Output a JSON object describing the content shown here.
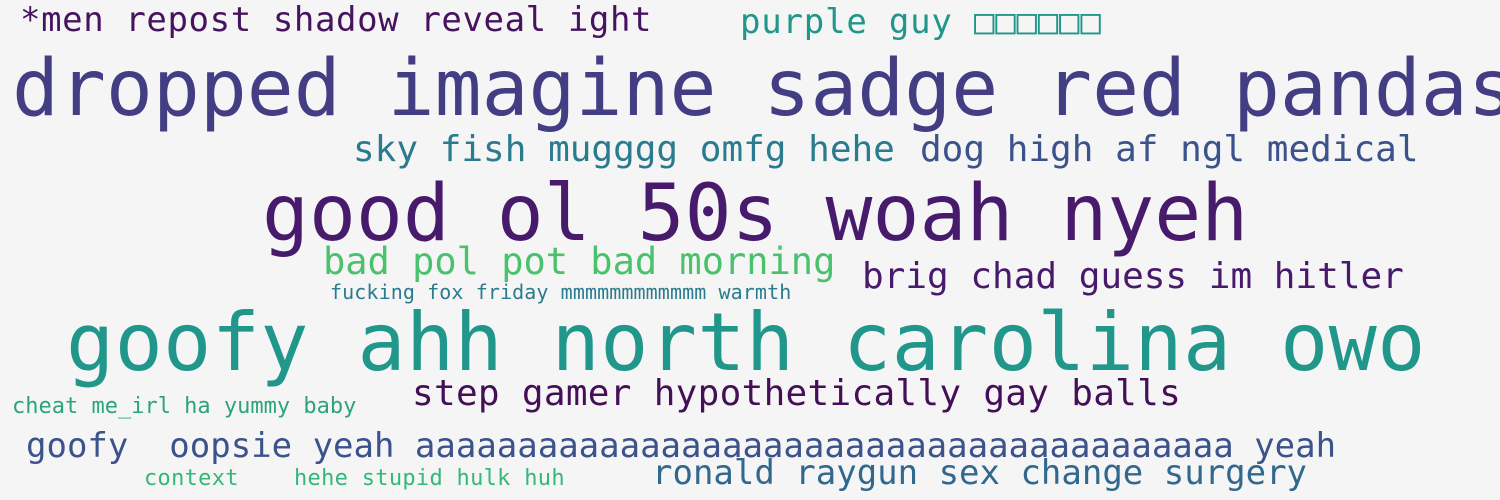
{
  "word_cloud": {
    "phrases": [
      {
        "text": "*men repost shadow reveal ight",
        "color": "#46135e"
      },
      {
        "text": "purple guy □□□□□□",
        "color": "#21968a"
      },
      {
        "text": "dropped imagine sadge red pandas",
        "color": "#433d84"
      },
      {
        "text": "sky fish mugggg omfg hehe",
        "color": "#2a7b8e"
      },
      {
        "text": "dog high af ngl medical",
        "color": "#3b528b"
      },
      {
        "text": "good ol 50s woah nyeh",
        "color": "#481a6c"
      },
      {
        "text": "bad pol pot bad morning",
        "color": "#4ac16d"
      },
      {
        "text": "brig chad guess im hitler",
        "color": "#481a6c"
      },
      {
        "text": "fucking fox friday mmmmmmmmmmmm warmth",
        "color": "#2a7b8e"
      },
      {
        "text": "goofy ahh north carolina owo",
        "color": "#21968a"
      },
      {
        "text": "cheat me_irl ha yummy baby",
        "color": "#2ba47e"
      },
      {
        "text": "step gamer hypothetically gay balls",
        "color": "#440f57"
      },
      {
        "text": "goofy  oopsie yeah aaaaaaaaaaaaaaaaaaaaaaaaaaaaaaaaaaaaaaaa yeah",
        "color": "#3b528b"
      },
      {
        "text": "context",
        "color": "#35b779"
      },
      {
        "text": "hehe stupid hulk huh",
        "color": "#35b779"
      },
      {
        "text": "ronald raygun sex change surgery",
        "color": "#31688e"
      }
    ]
  }
}
